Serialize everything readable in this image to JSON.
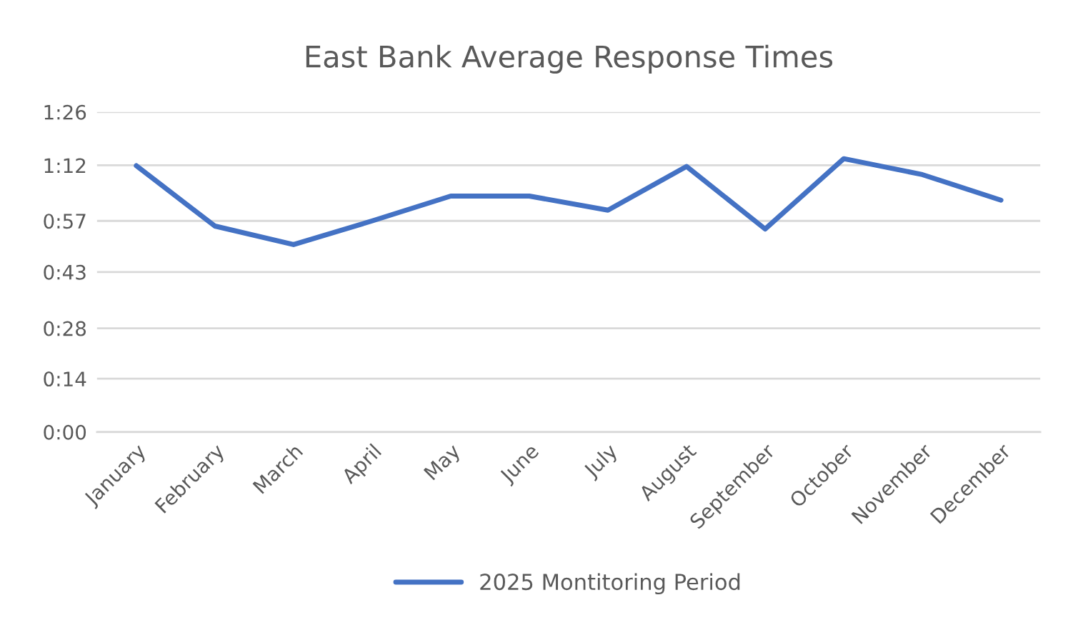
{
  "chart_data": {
    "type": "line",
    "title": "East Bank Average Response Times",
    "categories": [
      "January",
      "February",
      "March",
      "April",
      "May",
      "June",
      "July",
      "August",
      "September",
      "October",
      "November",
      "December"
    ],
    "series": [
      {
        "name": "2025 Montitoring Period",
        "color": "#4472c4",
        "values": [
          71.9,
          55.6,
          50.6,
          57.0,
          63.7,
          63.7,
          59.9,
          71.7,
          54.8,
          73.8,
          69.5,
          62.6
        ]
      }
    ],
    "ylim": [
      0,
      86.4
    ],
    "yticks": [
      {
        "value": 0,
        "label": "0:00"
      },
      {
        "value": 14.4,
        "label": "0:14"
      },
      {
        "value": 28,
        "label": "0:28"
      },
      {
        "value": 43.2,
        "label": "0:43"
      },
      {
        "value": 57,
        "label": "0:57"
      },
      {
        "value": 72,
        "label": "1:12"
      },
      {
        "value": 86.4,
        "label": "1:26"
      }
    ],
    "grid": "y",
    "legend": "bottom",
    "marker": "none",
    "line_style": "solid"
  }
}
